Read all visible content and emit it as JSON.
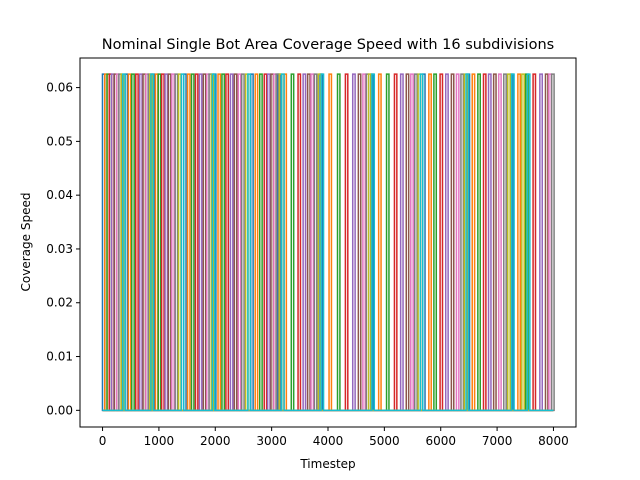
{
  "chart_data": {
    "type": "line",
    "title": "Nominal Single Bot Area Coverage Speed with 16 subdivisions",
    "xlabel": "Timestep",
    "ylabel": "Coverage Speed",
    "xlim": [
      -400,
      8400
    ],
    "ylim": [
      -0.0031,
      0.0655
    ],
    "xticks": [
      0,
      1000,
      2000,
      3000,
      4000,
      5000,
      6000,
      7000,
      8000
    ],
    "xtick_labels": [
      "0",
      "1000",
      "2000",
      "3000",
      "4000",
      "5000",
      "6000",
      "7000",
      "8000"
    ],
    "yticks": [
      0.0,
      0.01,
      0.02,
      0.03,
      0.04,
      0.05,
      0.06
    ],
    "ytick_labels": [
      "0.00",
      "0.01",
      "0.02",
      "0.03",
      "0.04",
      "0.05",
      "0.06"
    ],
    "grid": false,
    "legend": "none",
    "pulse_height": 0.0625,
    "baseline": 0.0,
    "x_range": [
      0,
      8000
    ],
    "colors": [
      "#1f77b4",
      "#ff7f0e",
      "#2ca02c",
      "#d62728",
      "#9467bd",
      "#8c564b",
      "#e377c2",
      "#7f7f7f",
      "#bcbd22",
      "#17becf"
    ],
    "series": [
      {
        "pulse_x": [
          20,
          420,
          900,
          1460,
          1990,
          2650,
          3130,
          3880,
          4780,
          5700,
          6490,
          7260
        ]
      },
      {
        "pulse_x": [
          60,
          480,
          960,
          1530,
          2070,
          2730,
          3240,
          4040,
          4920,
          5810,
          6580,
          7390
        ]
      },
      {
        "pulse_x": [
          100,
          540,
          1010,
          1600,
          2140,
          2810,
          3370,
          4190,
          5060,
          5900,
          6680,
          7530
        ]
      },
      {
        "pulse_x": [
          140,
          610,
          1070,
          1670,
          2210,
          2890,
          3490,
          4330,
          5200,
          6010,
          6780,
          7660
        ]
      },
      {
        "pulse_x": [
          180,
          680,
          1130,
          1740,
          2290,
          2950,
          3580,
          4460,
          5310,
          6110,
          6870,
          7780
        ]
      },
      {
        "pulse_x": [
          230,
          740,
          1190,
          1810,
          2360,
          3010,
          3660,
          4560,
          5410,
          6210,
          6960,
          7880
        ]
      },
      {
        "pulse_x": [
          270,
          790,
          1250,
          1870,
          2430,
          3060,
          3720,
          4640,
          5490,
          6300,
          7050,
          7940
        ]
      },
      {
        "pulse_x": [
          310,
          830,
          1310,
          1910,
          2490,
          3100,
          3780,
          4700,
          5560,
          6380,
          7140,
          7990
        ]
      },
      {
        "pulse_x": [
          350,
          860,
          1370,
          1950,
          2560,
          3160,
          3850,
          4740,
          5620,
          6440,
          7210,
          7460
        ]
      },
      {
        "pulse_x": [
          380,
          880,
          1420,
          1970,
          2600,
          3200,
          3900,
          4800,
          5660,
          6470,
          7280,
          7560
        ]
      }
    ]
  }
}
